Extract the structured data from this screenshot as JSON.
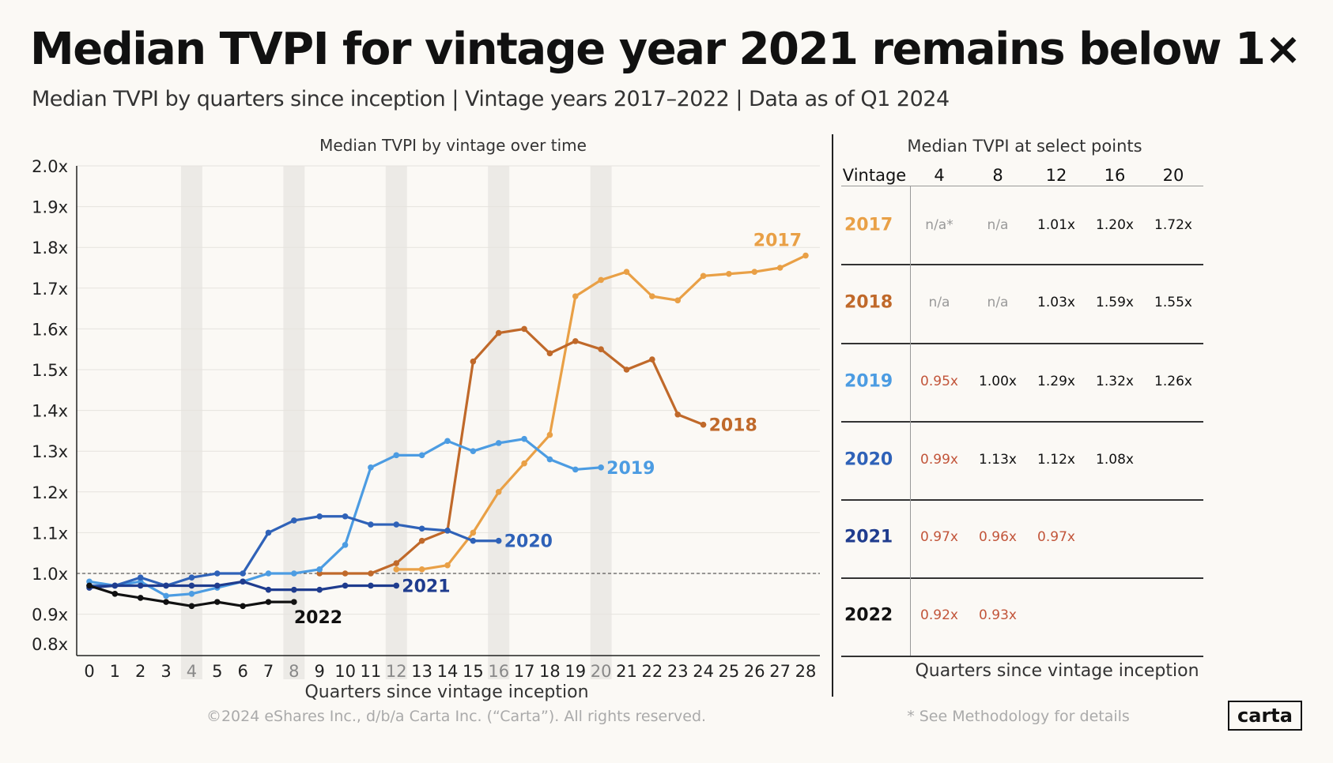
{
  "header": {
    "title": "Median TVPI for vintage year 2021 remains below 1×",
    "subtitle": "Median TVPI by quarters since inception | Vintage years 2017–2022 | Data as of Q1 2024"
  },
  "colors": {
    "background": "#FBF9F5",
    "2017": "#E9A046",
    "2018": "#C0692A",
    "2019": "#4C9CE2",
    "2020": "#2F62B8",
    "2021": "#1F3C8E",
    "2022": "#111111",
    "below_one": "#C2553A",
    "highlight_band": "#ECEAE6"
  },
  "chart_data": {
    "type": "line",
    "title": "Median TVPI by vintage over time",
    "xlabel": "Quarters since vintage inception",
    "ylabel": "",
    "xlim": [
      0,
      28
    ],
    "ylim": [
      0.8,
      2.0
    ],
    "y_ticks": [
      "0.8x",
      "0.9x",
      "1.0x",
      "1.1x",
      "1.2x",
      "1.3x",
      "1.4x",
      "1.5x",
      "1.6x",
      "1.7x",
      "1.8x",
      "1.9x",
      "2.0x"
    ],
    "y_tick_values": [
      0.8,
      0.9,
      1.0,
      1.1,
      1.2,
      1.3,
      1.4,
      1.5,
      1.6,
      1.7,
      1.8,
      1.9,
      2.0
    ],
    "x_ticks": [
      "0",
      "1",
      "2",
      "3",
      "4",
      "5",
      "6",
      "7",
      "8",
      "9",
      "10",
      "11",
      "12",
      "13",
      "14",
      "15",
      "16",
      "17",
      "18",
      "19",
      "20",
      "21",
      "22",
      "23",
      "24",
      "25",
      "26",
      "27",
      "28"
    ],
    "highlighted_quarters": [
      4,
      8,
      12,
      16,
      20
    ],
    "reference_line": 1.0,
    "grid": true,
    "series": [
      {
        "name": "2017",
        "x": [
          12,
          13,
          14,
          15,
          16,
          17,
          18,
          19,
          20,
          21,
          22,
          23,
          24,
          25,
          26,
          27,
          28
        ],
        "values": [
          1.01,
          1.01,
          1.02,
          1.1,
          1.2,
          1.27,
          1.34,
          1.68,
          1.72,
          1.74,
          1.68,
          1.67,
          1.73,
          1.735,
          1.74,
          1.75,
          1.78
        ]
      },
      {
        "name": "2018",
        "x": [
          9,
          10,
          11,
          12,
          13,
          14,
          15,
          16,
          17,
          18,
          19,
          20,
          21,
          22,
          23,
          24
        ],
        "values": [
          1.0,
          1.0,
          1.0,
          1.025,
          1.08,
          1.105,
          1.52,
          1.59,
          1.6,
          1.54,
          1.57,
          1.55,
          1.5,
          1.525,
          1.39,
          1.365
        ]
      },
      {
        "name": "2019",
        "x": [
          0,
          1,
          2,
          3,
          4,
          5,
          6,
          7,
          8,
          9,
          10,
          11,
          12,
          13,
          14,
          15,
          16,
          17,
          18,
          19,
          20
        ],
        "values": [
          0.98,
          0.97,
          0.98,
          0.945,
          0.95,
          0.965,
          0.98,
          1.0,
          1.0,
          1.01,
          1.07,
          1.26,
          1.29,
          1.29,
          1.325,
          1.3,
          1.32,
          1.33,
          1.28,
          1.255,
          1.26
        ]
      },
      {
        "name": "2020",
        "x": [
          0,
          1,
          2,
          3,
          4,
          5,
          6,
          7,
          8,
          9,
          10,
          11,
          12,
          13,
          14,
          15,
          16
        ],
        "values": [
          0.97,
          0.97,
          0.99,
          0.97,
          0.99,
          1.0,
          1.0,
          1.1,
          1.13,
          1.14,
          1.14,
          1.12,
          1.12,
          1.11,
          1.105,
          1.08,
          1.08
        ]
      },
      {
        "name": "2021",
        "x": [
          0,
          1,
          2,
          3,
          4,
          5,
          6,
          7,
          8,
          9,
          10,
          11,
          12
        ],
        "values": [
          0.965,
          0.97,
          0.97,
          0.97,
          0.97,
          0.97,
          0.98,
          0.96,
          0.96,
          0.96,
          0.97,
          0.97,
          0.97
        ]
      },
      {
        "name": "2022",
        "x": [
          0,
          1,
          2,
          3,
          4,
          5,
          6,
          7,
          8
        ],
        "values": [
          0.97,
          0.95,
          0.94,
          0.93,
          0.92,
          0.93,
          0.92,
          0.93,
          0.93
        ]
      }
    ]
  },
  "table": {
    "title": "Median TVPI at select points",
    "vintage_header": "Vintage",
    "columns": [
      "4",
      "8",
      "12",
      "16",
      "20"
    ],
    "xlabel": "Quarters since vintage inception",
    "rows": [
      {
        "vintage": "2017",
        "cells": [
          "n/a*",
          "n/a",
          "1.01x",
          "1.20x",
          "1.72x"
        ]
      },
      {
        "vintage": "2018",
        "cells": [
          "n/a",
          "n/a",
          "1.03x",
          "1.59x",
          "1.55x"
        ]
      },
      {
        "vintage": "2019",
        "cells": [
          "0.95x",
          "1.00x",
          "1.29x",
          "1.32x",
          "1.26x"
        ]
      },
      {
        "vintage": "2020",
        "cells": [
          "0.99x",
          "1.13x",
          "1.12x",
          "1.08x",
          ""
        ]
      },
      {
        "vintage": "2021",
        "cells": [
          "0.97x",
          "0.96x",
          "0.97x",
          "",
          ""
        ]
      },
      {
        "vintage": "2022",
        "cells": [
          "0.92x",
          "0.93x",
          "",
          "",
          ""
        ]
      }
    ]
  },
  "footer": {
    "copyright": "©2024 eShares Inc., d/b/a Carta Inc. (“Carta”). All rights reserved.",
    "footnote": "* See Methodology for details",
    "logo": "carta"
  }
}
